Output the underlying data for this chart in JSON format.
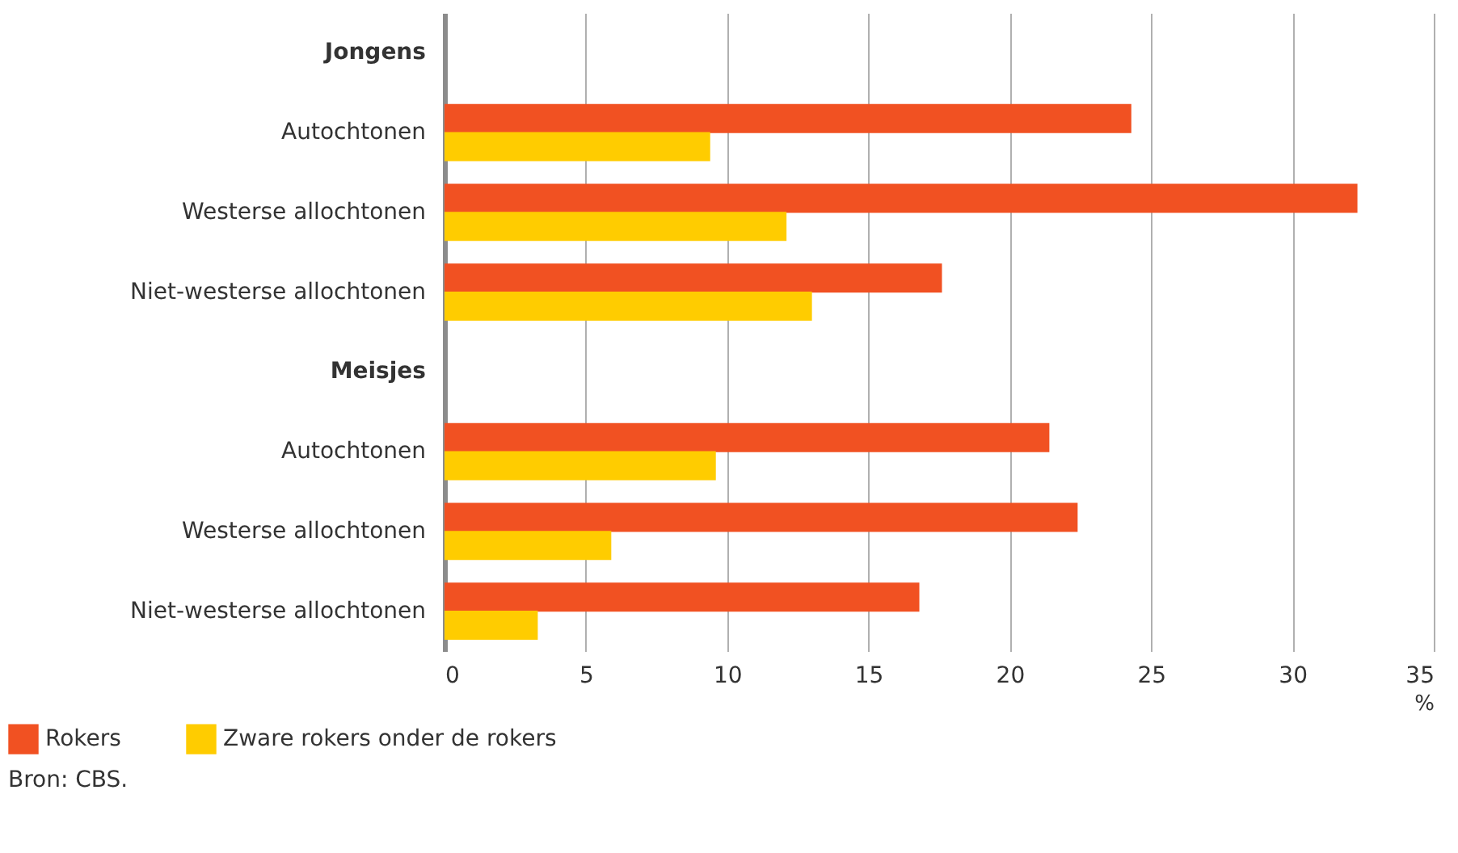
{
  "chart_data": {
    "type": "bar",
    "orientation": "horizontal",
    "categories": [
      "Jongens",
      "Autochtonen",
      "Westerse allochtonen",
      "Niet-westerse allochtonen",
      "Meisjes",
      "Autochtonen",
      "Westerse allochtonen",
      "Niet-westerse allochtonen"
    ],
    "series": [
      {
        "name": "Rokers",
        "color": "#f15122",
        "values": [
          null,
          24.3,
          32.3,
          17.6,
          null,
          21.4,
          22.4,
          16.8
        ]
      },
      {
        "name": "Zware rokers onder de rokers",
        "color": "#ffcc00",
        "values": [
          null,
          9.4,
          12.1,
          13.0,
          null,
          9.6,
          5.9,
          3.3
        ]
      }
    ],
    "xlim": [
      0,
      35
    ],
    "xticks": [
      0,
      5,
      10,
      15,
      20,
      25,
      30,
      35
    ],
    "xlabel": "%",
    "grid": "x",
    "legend": "bottom left",
    "annotations": [
      "Bron: CBS."
    ]
  }
}
